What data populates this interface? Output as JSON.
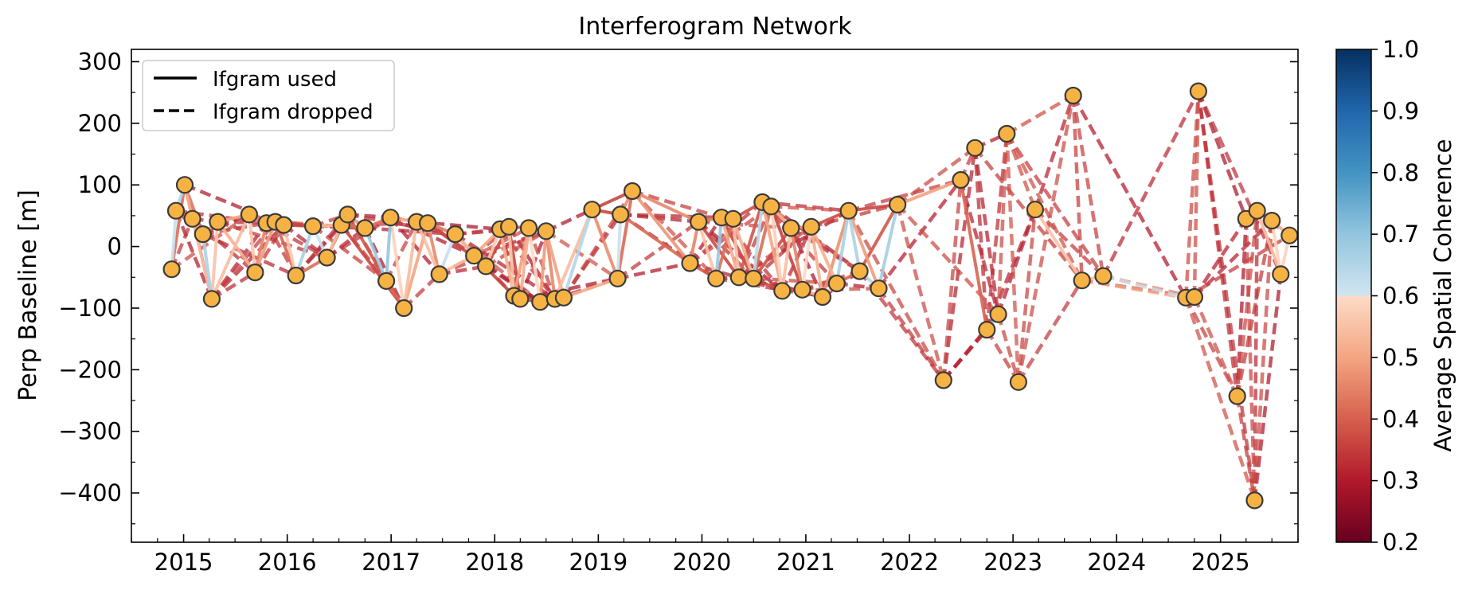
{
  "chart_data": {
    "type": "line",
    "title": "Interferogram Network",
    "ylabel": "Perp Baseline [m]",
    "xlabel": "",
    "xlim": [
      "2014-07-01",
      "2025-10-01"
    ],
    "ylim": [
      -480,
      320
    ],
    "x_ticks": [
      "2015",
      "2016",
      "2017",
      "2018",
      "2019",
      "2020",
      "2021",
      "2022",
      "2023",
      "2024",
      "2025"
    ],
    "y_ticks": [
      300,
      200,
      100,
      0,
      -100,
      -200,
      -300,
      -400
    ],
    "y_tick_labels": [
      "300",
      "200",
      "100",
      "0",
      "−100",
      "−200",
      "−300",
      "−400"
    ],
    "legend": {
      "position": "top-left",
      "entries": [
        {
          "label": "Ifgram used",
          "style": "solid"
        },
        {
          "label": "Ifgram dropped",
          "style": "dashed"
        }
      ]
    },
    "colorbar": {
      "label": "Average Spatial Coherence",
      "range": [
        0.2,
        1.0
      ],
      "ticks": [
        "0.2",
        "0.3",
        "0.4",
        "0.5",
        "0.6",
        "0.7",
        "0.8",
        "0.9",
        "1.0"
      ],
      "colormap": "RdBu truncated, values below 0.6 in red tones"
    },
    "acquisitions": [
      {
        "date": "2014-11-20",
        "bperp": -37
      },
      {
        "date": "2014-12-05",
        "bperp": 58
      },
      {
        "date": "2015-01-05",
        "bperp": 100
      },
      {
        "date": "2015-02-01",
        "bperp": 45
      },
      {
        "date": "2015-03-10",
        "bperp": 20
      },
      {
        "date": "2015-04-10",
        "bperp": -85
      },
      {
        "date": "2015-05-01",
        "bperp": 40
      },
      {
        "date": "2015-08-20",
        "bperp": 52
      },
      {
        "date": "2015-09-10",
        "bperp": -42
      },
      {
        "date": "2015-10-20",
        "bperp": 38
      },
      {
        "date": "2015-11-20",
        "bperp": 40
      },
      {
        "date": "2015-12-20",
        "bperp": 35
      },
      {
        "date": "2016-02-01",
        "bperp": -47
      },
      {
        "date": "2016-04-01",
        "bperp": 33
      },
      {
        "date": "2016-05-20",
        "bperp": -18
      },
      {
        "date": "2016-07-10",
        "bperp": 35
      },
      {
        "date": "2016-08-01",
        "bperp": 52
      },
      {
        "date": "2016-10-01",
        "bperp": 30
      },
      {
        "date": "2016-12-15",
        "bperp": -56
      },
      {
        "date": "2016-12-30",
        "bperp": 47
      },
      {
        "date": "2017-02-15",
        "bperp": -100
      },
      {
        "date": "2017-04-01",
        "bperp": 40
      },
      {
        "date": "2017-05-10",
        "bperp": 38
      },
      {
        "date": "2017-06-20",
        "bperp": -45
      },
      {
        "date": "2017-08-15",
        "bperp": 20
      },
      {
        "date": "2017-10-20",
        "bperp": -15
      },
      {
        "date": "2017-12-01",
        "bperp": -32
      },
      {
        "date": "2018-01-20",
        "bperp": 28
      },
      {
        "date": "2018-02-20",
        "bperp": 32
      },
      {
        "date": "2018-03-10",
        "bperp": -80
      },
      {
        "date": "2018-04-01",
        "bperp": -85
      },
      {
        "date": "2018-05-01",
        "bperp": 30
      },
      {
        "date": "2018-06-10",
        "bperp": -90
      },
      {
        "date": "2018-07-01",
        "bperp": 25
      },
      {
        "date": "2018-08-01",
        "bperp": -85
      },
      {
        "date": "2018-09-01",
        "bperp": -83
      },
      {
        "date": "2018-12-10",
        "bperp": 60
      },
      {
        "date": "2019-03-10",
        "bperp": -52
      },
      {
        "date": "2019-03-20",
        "bperp": 52
      },
      {
        "date": "2019-05-01",
        "bperp": 90
      },
      {
        "date": "2019-11-20",
        "bperp": -27
      },
      {
        "date": "2019-12-20",
        "bperp": 40
      },
      {
        "date": "2020-02-20",
        "bperp": -52
      },
      {
        "date": "2020-03-10",
        "bperp": 47
      },
      {
        "date": "2020-04-20",
        "bperp": 45
      },
      {
        "date": "2020-05-10",
        "bperp": -50
      },
      {
        "date": "2020-07-01",
        "bperp": -52
      },
      {
        "date": "2020-08-01",
        "bperp": 72
      },
      {
        "date": "2020-09-01",
        "bperp": 65
      },
      {
        "date": "2020-10-10",
        "bperp": -72
      },
      {
        "date": "2020-11-10",
        "bperp": 30
      },
      {
        "date": "2020-12-20",
        "bperp": -70
      },
      {
        "date": "2021-01-20",
        "bperp": 32
      },
      {
        "date": "2021-03-01",
        "bperp": -82
      },
      {
        "date": "2021-04-20",
        "bperp": -60
      },
      {
        "date": "2021-06-01",
        "bperp": 58
      },
      {
        "date": "2021-07-10",
        "bperp": -40
      },
      {
        "date": "2021-09-15",
        "bperp": -68
      },
      {
        "date": "2021-11-20",
        "bperp": 68
      },
      {
        "date": "2022-05-01",
        "bperp": -217
      },
      {
        "date": "2022-07-01",
        "bperp": 108
      },
      {
        "date": "2022-08-20",
        "bperp": 160
      },
      {
        "date": "2022-10-01",
        "bperp": -135
      },
      {
        "date": "2022-11-10",
        "bperp": -110
      },
      {
        "date": "2022-12-10",
        "bperp": 183
      },
      {
        "date": "2023-01-20",
        "bperp": -220
      },
      {
        "date": "2023-03-20",
        "bperp": 60
      },
      {
        "date": "2023-08-01",
        "bperp": 245
      },
      {
        "date": "2023-09-01",
        "bperp": -55
      },
      {
        "date": "2023-11-15",
        "bperp": -48
      },
      {
        "date": "2024-09-01",
        "bperp": -83
      },
      {
        "date": "2024-10-01",
        "bperp": -82
      },
      {
        "date": "2024-10-15",
        "bperp": 252
      },
      {
        "date": "2025-03-01",
        "bperp": -243
      },
      {
        "date": "2025-04-01",
        "bperp": 45
      },
      {
        "date": "2025-05-01",
        "bperp": -412
      },
      {
        "date": "2025-05-10",
        "bperp": 58
      },
      {
        "date": "2025-07-01",
        "bperp": 42
      },
      {
        "date": "2025-08-01",
        "bperp": -45
      },
      {
        "date": "2025-09-01",
        "bperp": 18
      }
    ]
  }
}
